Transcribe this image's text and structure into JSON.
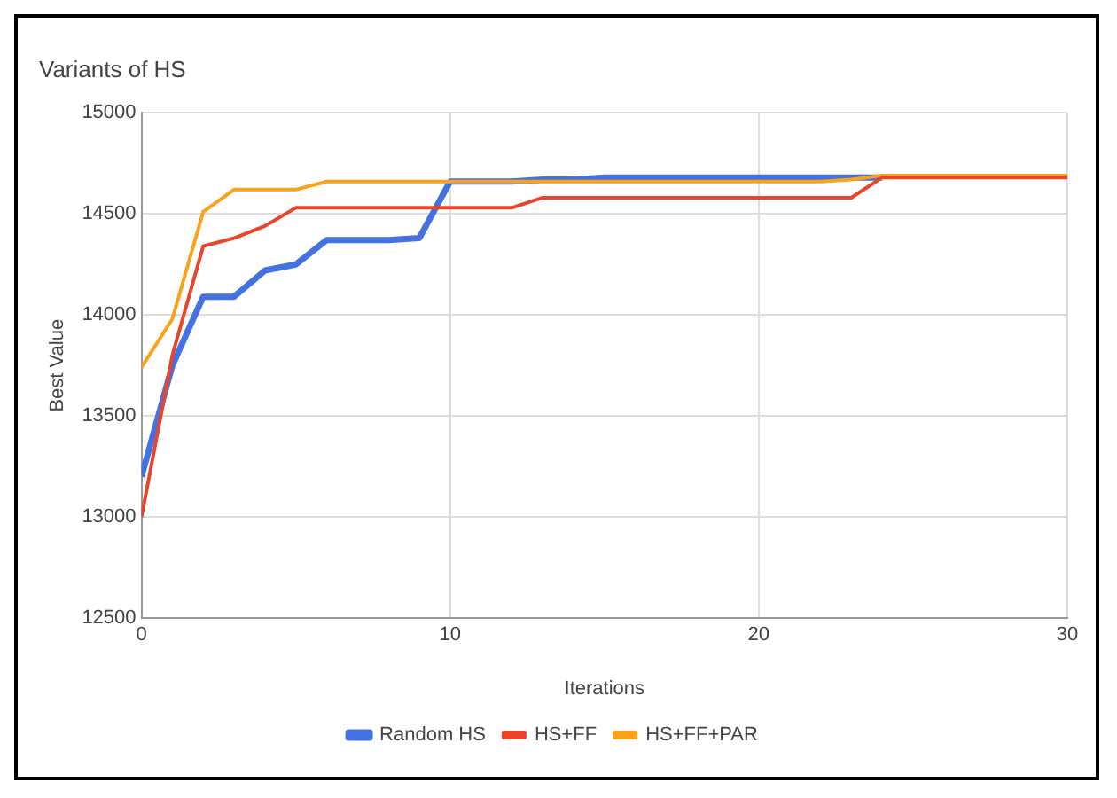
{
  "chart_data": {
    "type": "line",
    "title": "Variants of HS",
    "xlabel": "Iterations",
    "ylabel": "Best Value",
    "x": [
      0,
      1,
      2,
      3,
      4,
      5,
      6,
      7,
      8,
      9,
      10,
      11,
      12,
      13,
      14,
      15,
      16,
      17,
      18,
      19,
      20,
      21,
      22,
      23,
      24,
      25,
      26,
      27,
      28,
      29,
      30
    ],
    "series": [
      {
        "name": "Random HS",
        "color": "#4472e0",
        "values": [
          13200,
          13750,
          14090,
          14090,
          14220,
          14250,
          14370,
          14370,
          14370,
          14380,
          14660,
          14660,
          14660,
          14670,
          14670,
          14680,
          14680,
          14680,
          14680,
          14680,
          14680,
          14680,
          14680,
          14680,
          14680,
          null,
          null,
          null,
          null,
          null,
          null
        ]
      },
      {
        "name": "HS+FF",
        "color": "#e8452c",
        "values": [
          13000,
          13800,
          14340,
          14380,
          14440,
          14530,
          14530,
          14530,
          14530,
          14530,
          14530,
          14530,
          14530,
          14580,
          14580,
          14580,
          14580,
          14580,
          14580,
          14580,
          14580,
          14580,
          14580,
          14580,
          14680,
          14680,
          14680,
          14680,
          14680,
          14680,
          14680
        ]
      },
      {
        "name": "HS+FF+PAR",
        "color": "#f9a21a",
        "values": [
          13740,
          13980,
          14510,
          14620,
          14620,
          14620,
          14660,
          14660,
          14660,
          14660,
          14660,
          14660,
          14660,
          14660,
          14660,
          14660,
          14660,
          14660,
          14660,
          14660,
          14660,
          14660,
          14660,
          14670,
          14690,
          14690,
          14690,
          14690,
          14690,
          14690,
          14690
        ]
      }
    ],
    "xlim": [
      0,
      30
    ],
    "xticks": [
      0,
      10,
      20,
      30
    ],
    "ylim": [
      12500,
      15000
    ],
    "yticks": [
      12500,
      13000,
      13500,
      14000,
      14500,
      15000
    ],
    "grid": true,
    "legend": "bottom",
    "marker": "none",
    "line_style": "solid"
  }
}
